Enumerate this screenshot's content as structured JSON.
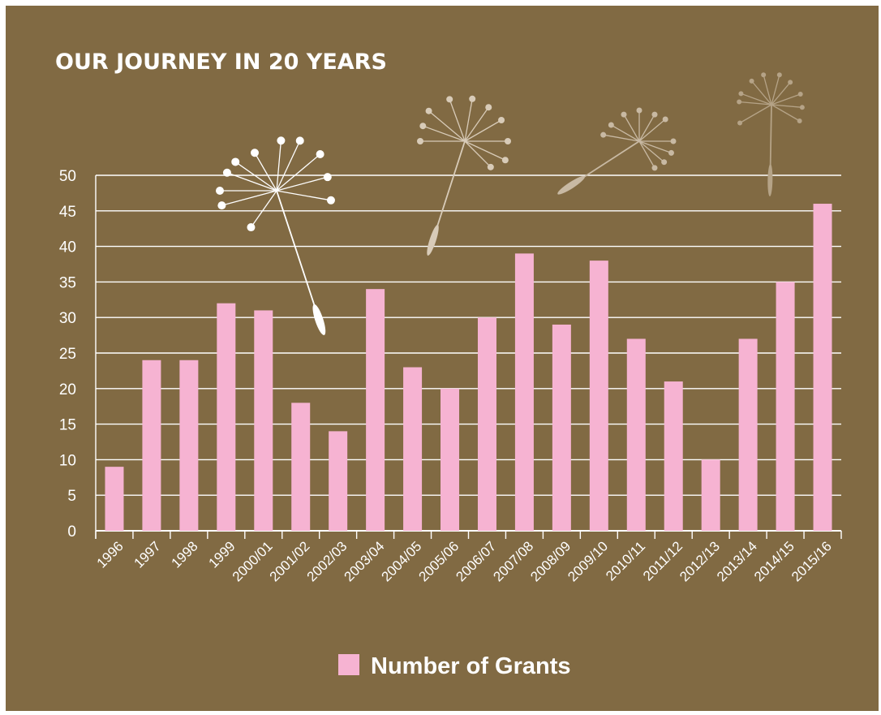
{
  "chart_data": {
    "type": "bar",
    "title": "OUR JOURNEY IN 20 YEARS",
    "xlabel": "",
    "ylabel": "",
    "ylim": [
      0,
      50
    ],
    "yticks": [
      0,
      5,
      10,
      15,
      20,
      25,
      30,
      35,
      40,
      45,
      50
    ],
    "grid": true,
    "legend_position": "bottom",
    "categories": [
      "1996",
      "1997",
      "1998",
      "1999",
      "2000/01",
      "2001/02",
      "2002/03",
      "2003/04",
      "2004/05",
      "2005/06",
      "2006/07",
      "2007/08",
      "2008/09",
      "2009/10",
      "2010/11",
      "2011/12",
      "2012/13",
      "2013/14",
      "2014/15",
      "2015/16"
    ],
    "series": [
      {
        "name": "Number of Grants",
        "values": [
          9,
          24,
          24,
          32,
          31,
          18,
          14,
          34,
          23,
          20,
          30,
          39,
          29,
          38,
          27,
          21,
          10,
          27,
          35,
          46
        ],
        "color": "#f6b3d2"
      }
    ]
  },
  "colors": {
    "background": "#816a43",
    "gridline": "#ffffff",
    "bar": "#f6b3d2",
    "text": "#ffffff"
  },
  "decorations": [
    "dandelion-seed-icon",
    "dandelion-seed-icon",
    "dandelion-seed-icon",
    "dandelion-seed-icon"
  ]
}
